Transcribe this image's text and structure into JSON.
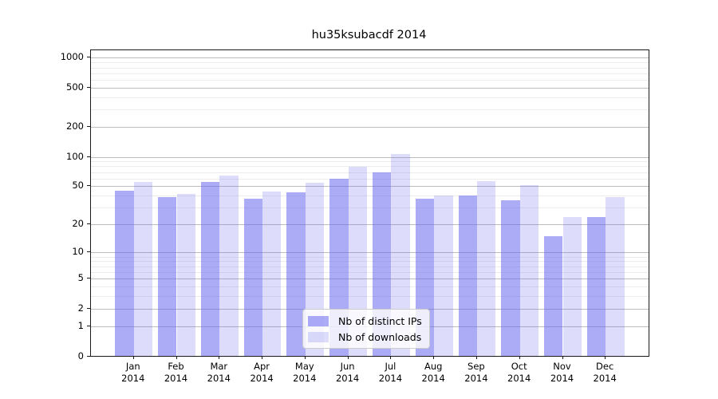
{
  "chart": {
    "title": "hu35ksubacdf 2014",
    "legend": {
      "items": [
        {
          "label": "Nb of distinct IPs",
          "series_key": "ips"
        },
        {
          "label": "Nb of downloads",
          "series_key": "downloads"
        }
      ]
    }
  },
  "chart_data": {
    "type": "bar",
    "title": "hu35ksubacdf 2014",
    "xlabel": "",
    "ylabel": "",
    "scale": "log10(1+y)",
    "grid": true,
    "legend_position": "lower-center",
    "categories": [
      "Jan 2014",
      "Feb 2014",
      "Mar 2014",
      "Apr 2014",
      "May 2014",
      "Jun 2014",
      "Jul 2014",
      "Aug 2014",
      "Sep 2014",
      "Oct 2014",
      "Nov 2014",
      "Dec 2014"
    ],
    "series": [
      {
        "name": "Nb of distinct IPs",
        "key": "ips",
        "values": [
          45,
          39,
          55,
          37,
          43,
          60,
          69,
          37,
          40,
          36,
          15,
          24
        ]
      },
      {
        "name": "Nb of downloads",
        "key": "downloads",
        "values": [
          55,
          42,
          65,
          44,
          54,
          79,
          106,
          40,
          57,
          51,
          24,
          39
        ]
      }
    ],
    "yticks": [
      0,
      1,
      2,
      5,
      10,
      20,
      50,
      100,
      200,
      500,
      1000
    ],
    "ylim": [
      0,
      1200
    ],
    "colors": {
      "ips": "rgba(102,102,238,0.55)",
      "downloads": "rgba(102,102,238,0.22)",
      "grid_major": "#bdbdbd",
      "grid_minor": "#ececec",
      "axis": "#1a1a1a"
    }
  }
}
